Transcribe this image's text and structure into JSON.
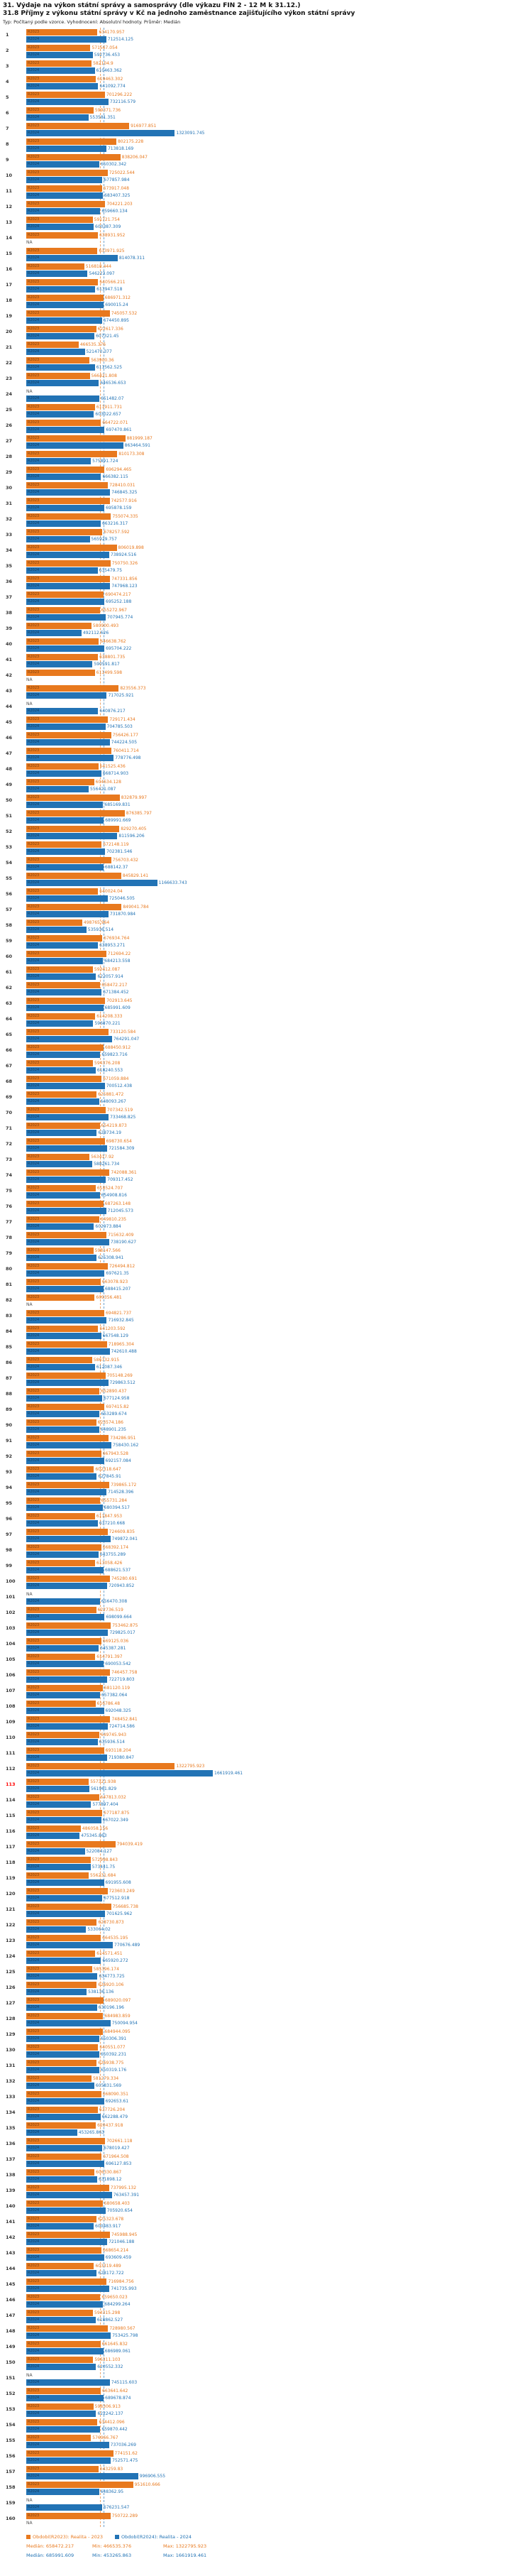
{
  "header": {
    "title1": "31. Výdaje na výkon státní správy a samosprávy (dle výkazu FIN 2 - 12 M k 31.12.)",
    "title2": "31.8 Příjmy z výkonu státní správy v Kč na jednoho zaměstnance zajišťujícího výkon státní správy",
    "subtitle": "Typ: Počítaný podle vzorce. Vyhodnocení: Absolutní hodnoty. Průměr: Medián"
  },
  "colors": {
    "r2023": "#e8791e",
    "r2024": "#2273b5",
    "highlight_row": "#ff0000"
  },
  "series_labels": {
    "r2023": "R2023",
    "r2024": "R2024",
    "na": "NA"
  },
  "legend": {
    "r2023": {
      "label": "Období(R2023): Realita - 2023",
      "median_label": "Medián: 658472.217",
      "min_label": "Min: 466535.376",
      "max_label": "Max: 1322795.923"
    },
    "r2024": {
      "label": "Období(R2024): Realita - 2024",
      "median_label": "Medián: 685991.609",
      "min_label": "Min: 453265.863",
      "max_label": "Max: 1661919.461"
    }
  },
  "chart_data": {
    "type": "bar",
    "orientation": "horizontal",
    "series_names": [
      "Realita - 2023",
      "Realita - 2024"
    ],
    "x_scale_max": 1661919.461,
    "stats": {
      "r2023": {
        "median": 658472.217,
        "min": 466535.376,
        "max": 1322795.923
      },
      "r2024": {
        "median": 685991.609,
        "min": 453265.863,
        "max": 1661919.461
      }
    },
    "highlighted_rows": [
      113
    ],
    "rows": [
      [
        1,
        634170.957,
        712514.125
      ],
      [
        2,
        571567.054,
        592736.453
      ],
      [
        3,
        582104.9,
        610463.362
      ],
      [
        4,
        619463.302,
        641092.774
      ],
      [
        5,
        701296.222,
        732116.579
      ],
      [
        6,
        599371.736,
        553581.351
      ],
      [
        7,
        916977.851,
        1323091.745
      ],
      [
        8,
        802175.228,
        713818.169
      ],
      [
        9,
        838206.047,
        650302.342
      ],
      [
        10,
        725022.544,
        677857.984
      ],
      [
        11,
        673917.048,
        683407.325
      ],
      [
        12,
        704221.203,
        659660.134
      ],
      [
        13,
        591721.754,
        600387.309
      ],
      [
        14,
        638931.952,
        null
      ],
      [
        15,
        633971.925,
        814078.311
      ],
      [
        16,
        516818.444,
        546223.097
      ],
      [
        17,
        640566.211,
        613947.518
      ],
      [
        18,
        686971.312,
        690015.24
      ],
      [
        19,
        745057.532,
        674450.895
      ],
      [
        20,
        622617.336,
        607321.45
      ],
      [
        21,
        466535.376,
        521470.377
      ],
      [
        22,
        563900.36,
        611562.525
      ],
      [
        23,
        566421.808,
        646536.653
      ],
      [
        24,
        null,
        651482.07
      ],
      [
        25,
        611911.731,
        603022.657
      ],
      [
        26,
        664722.071,
        697470.861
      ],
      [
        27,
        881999.187,
        863464.591
      ],
      [
        28,
        810173.308,
        575891.724
      ],
      [
        29,
        696294.465,
        666382.115
      ],
      [
        30,
        728410.031,
        746845.325
      ],
      [
        31,
        742577.916,
        695878.159
      ],
      [
        32,
        755074.335,
        663216.317
      ],
      [
        33,
        678257.592,
        565929.757
      ],
      [
        34,
        806019.898,
        738924.516
      ],
      [
        35,
        750750.326,
        635479.75
      ],
      [
        36,
        747331.856,
        747968.123
      ],
      [
        37,
        690474.217,
        695252.188
      ],
      [
        38,
        655272.967,
        707945.774
      ],
      [
        39,
        580900.493,
        492112.626
      ],
      [
        40,
        646638.762,
        695704.222
      ],
      [
        41,
        638801.735,
        590591.817
      ],
      [
        42,
        611499.598,
        null
      ],
      [
        43,
        823556.373,
        717025.921
      ],
      [
        44,
        null,
        640876.217
      ],
      [
        45,
        729171.434,
        704785.503
      ],
      [
        46,
        756426.177,
        744224.505
      ],
      [
        47,
        760411.714,
        778776.498
      ],
      [
        48,
        641525.436,
        668714.903
      ],
      [
        49,
        604634.128,
        556421.087
      ],
      [
        50,
        832879.997,
        685169.831
      ],
      [
        51,
        876385.797,
        689991.669
      ],
      [
        52,
        829270.405,
        811596.206
      ],
      [
        53,
        672148.119,
        702381.546
      ],
      [
        54,
        756703.432,
        688142.37
      ],
      [
        55,
        845829.141,
        1166633.743
      ],
      [
        56,
        640024.04,
        725046.505
      ],
      [
        57,
        849041.784,
        731870.984
      ],
      [
        58,
        498765.964,
        535936.514
      ],
      [
        59,
        676934.764,
        638953.271
      ],
      [
        60,
        712694.22,
        684213.558
      ],
      [
        61,
        593412.087,
        622057.914
      ],
      [
        62,
        658472.217,
        671384.452
      ],
      [
        63,
        702913.645,
        685991.609
      ],
      [
        64,
        614208.333,
        596870.221
      ],
      [
        65,
        733120.584,
        764291.047
      ],
      [
        66,
        688450.912,
        659823.716
      ],
      [
        67,
        594376.208,
        618240.553
      ],
      [
        68,
        671059.884,
        700512.438
      ],
      [
        69,
        625881.472,
        648093.267
      ],
      [
        70,
        707342.519,
        733468.825
      ],
      [
        71,
        654219.873,
        628734.19
      ],
      [
        72,
        698730.654,
        721584.309
      ],
      [
        73,
        563417.92,
        588261.734
      ],
      [
        74,
        742088.361,
        709317.452
      ],
      [
        75,
        618524.707,
        654908.816
      ],
      [
        76,
        687263.148,
        712045.573
      ],
      [
        77,
        649810.235,
        602973.884
      ],
      [
        78,
        715632.409,
        738190.627
      ],
      [
        79,
        598147.566,
        625308.941
      ],
      [
        80,
        726494.812,
        697621.35
      ],
      [
        81,
        663078.923,
        688415.207
      ],
      [
        82,
        609356.481,
        null
      ],
      [
        83,
        694821.737,
        716932.845
      ],
      [
        84,
        641203.592,
        667548.129
      ],
      [
        85,
        718965.304,
        742610.488
      ],
      [
        86,
        586732.915,
        612087.346
      ],
      [
        87,
        705148.269,
        729863.512
      ],
      [
        88,
        652890.437,
        677124.958
      ],
      [
        89,
        697415.82,
        653289.674
      ],
      [
        90,
        623574.186,
        648901.235
      ],
      [
        91,
        734286.951,
        758430.162
      ],
      [
        92,
        667943.528,
        692157.084
      ],
      [
        93,
        602318.647,
        627845.91
      ],
      [
        94,
        739865.172,
        714528.396
      ],
      [
        95,
        655731.284,
        680394.517
      ],
      [
        96,
        611847.953,
        637210.668
      ],
      [
        97,
        724609.835,
        749872.041
      ],
      [
        98,
        668392.174,
        643755.289
      ],
      [
        99,
        613058.426,
        688621.537
      ],
      [
        100,
        745280.691,
        720943.852
      ],
      [
        101,
        null,
        656470.308
      ],
      [
        102,
        622736.519,
        698099.664
      ],
      [
        103,
        753462.875,
        729825.017
      ],
      [
        104,
        669125.036,
        645387.281
      ],
      [
        105,
        614791.397,
        690053.542
      ],
      [
        106,
        746457.758,
        722719.803
      ],
      [
        107,
        681120.119,
        657382.064
      ],
      [
        108,
        616786.48,
        692048.325
      ],
      [
        109,
        748452.841,
        724714.586
      ],
      [
        110,
        649745.943,
        635936.514
      ],
      [
        111,
        693118.204,
        719380.847
      ],
      [
        112,
        1322795.923,
        1661919.461
      ],
      [
        113,
        557321.938,
        561961.829
      ],
      [
        114,
        647813.032,
        577897.404
      ],
      [
        115,
        677187.875,
        667022.349
      ],
      [
        116,
        486058.156,
        475345.863
      ],
      [
        117,
        794039.419,
        522084.127
      ],
      [
        118,
        572998.843,
        573441.75
      ],
      [
        119,
        556231.684,
        691955.608
      ],
      [
        120,
        723603.249,
        677512.918
      ],
      [
        121,
        756685.738,
        701625.962
      ],
      [
        122,
        628730.873,
        533064.02
      ],
      [
        123,
        664535.195,
        770676.489
      ],
      [
        124,
        614571.451,
        665920.272
      ],
      [
        125,
        585396.174,
        634773.725
      ],
      [
        126,
        626920.106,
        538136.136
      ],
      [
        127,
        689020.097,
        630196.196
      ],
      [
        128,
        684983.859,
        750094.954
      ],
      [
        129,
        684944.095,
        650306.391
      ],
      [
        130,
        640551.077,
        650392.231
      ],
      [
        131,
        626938.775,
        650319.176
      ],
      [
        132,
        581279.334,
        605831.569
      ],
      [
        133,
        668090.351,
        692653.61
      ],
      [
        134,
        637726.204,
        662288.479
      ],
      [
        135,
        620437.918,
        453265.863
      ],
      [
        136,
        702661.118,
        678019.427
      ],
      [
        137,
        671964.508,
        696127.853
      ],
      [
        138,
        606330.867,
        631898.12
      ],
      [
        139,
        737995.132,
        763457.391
      ],
      [
        140,
        680658.403,
        705920.654
      ],
      [
        141,
        625323.678,
        600483.917
      ],
      [
        142,
        745988.945,
        721046.188
      ],
      [
        143,
        668654.214,
        693609.459
      ],
      [
        144,
        603319.489,
        628172.722
      ],
      [
        145,
        716984.756,
        741735.993
      ],
      [
        146,
        659650.023,
        684299.264
      ],
      [
        147,
        594315.298,
        618862.527
      ],
      [
        148,
        728980.567,
        753425.798
      ],
      [
        149,
        661645.832,
        686989.061
      ],
      [
        150,
        596311.103,
        620552.332
      ],
      [
        151,
        null,
        745115.603
      ],
      [
        152,
        663641.642,
        689678.874
      ],
      [
        153,
        598306.913,
        622242.137
      ],
      [
        154,
        634412.096,
        659870.442
      ],
      [
        155,
        576966.767,
        737036.269
      ],
      [
        156,
        774151.62,
        752571.475
      ],
      [
        157,
        643259.83,
        996906.555
      ],
      [
        158,
        951610.666,
        648362.95
      ],
      [
        159,
        null,
        676231.547
      ],
      [
        160,
        750722.289,
        null
      ]
    ]
  }
}
